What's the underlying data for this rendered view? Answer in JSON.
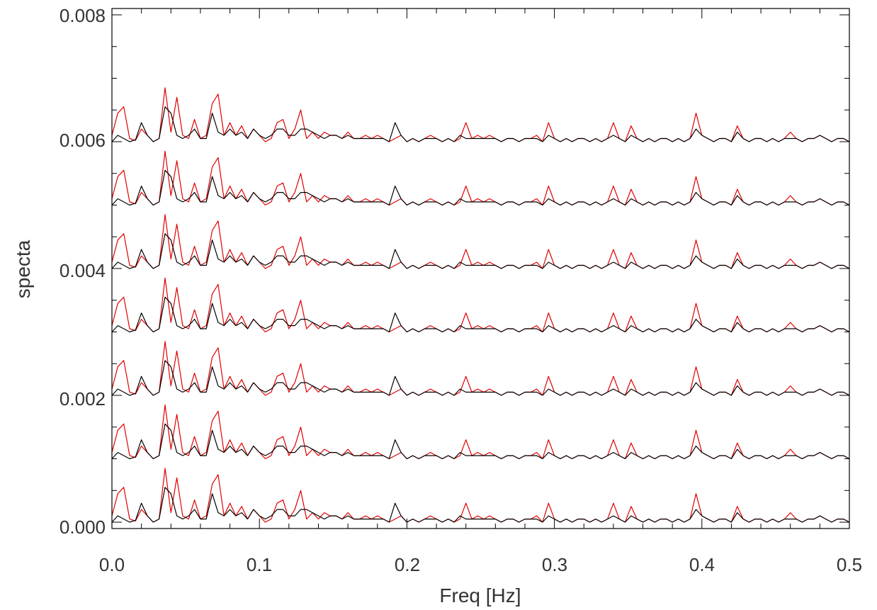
{
  "chart_data": {
    "type": "line",
    "title": "",
    "xlabel": "Freq [Hz]",
    "ylabel": "specta",
    "xlim": [
      0.0,
      0.5
    ],
    "ylim": [
      -0.0001,
      0.0081
    ],
    "x_ticks": [
      "0.0",
      "0.1",
      "0.2",
      "0.3",
      "0.4",
      "0.5"
    ],
    "y_ticks": [
      "0.000",
      "0.002",
      "0.004",
      "0.006",
      "0.008"
    ],
    "grid": false,
    "legend": "none",
    "colors": {
      "red_series": "#e00000",
      "black_series": "#000000"
    },
    "offset_step": 0.001,
    "n_stacked": 7,
    "baselines": [
      0.0,
      0.001,
      0.002,
      0.003,
      0.004,
      0.005,
      0.006
    ],
    "x_step": 0.004,
    "red_profile": [
      0.0001,
      0.00045,
      0.00055,
      5e-05,
      2e-05,
      0.0002,
      0.0001,
      0.0,
      5e-05,
      0.00085,
      0.00015,
      0.0007,
      0.0001,
      5e-05,
      0.00035,
      5e-05,
      0.0001,
      0.0006,
      0.00075,
      0.0001,
      0.0003,
      0.0001,
      0.00025,
      5e-05,
      0.0002,
      0.0001,
      0.0,
      5e-05,
      0.0003,
      0.00035,
      5e-05,
      0.0002,
      0.0005,
      5e-05,
      0.00015,
      5e-05,
      0.00015,
      0.0001,
      0.0001,
      5e-05,
      0.00015,
      5e-05,
      5e-05,
      0.0001,
      5e-05,
      0.0001,
      5e-05,
      0.0,
      5e-05,
      0.0001,
      0.0,
      5e-05,
      0.0,
      5e-05,
      0.0001,
      5e-05,
      0.0,
      5e-05,
      0.0,
      5e-05,
      0.0003,
      5e-05,
      0.0001,
      5e-05,
      0.0001,
      5e-05,
      0.0,
      5e-05,
      5e-05,
      0.0,
      5e-05,
      5e-05,
      0.0001,
      0.0,
      0.0003,
      5e-05,
      0.0,
      5e-05,
      0.0,
      5e-05,
      5e-05,
      0.0,
      5e-05,
      0.0,
      5e-05,
      0.0003,
      5e-05,
      0.0,
      0.00025,
      5e-05,
      0.0,
      5e-05,
      0.0,
      5e-05,
      5e-05,
      0.0,
      5e-05,
      0.0,
      5e-05,
      0.00045,
      0.0001,
      5e-05,
      0.0,
      5e-05,
      5e-05,
      0.0,
      0.00025,
      5e-05,
      0.0,
      5e-05,
      5e-05,
      0.0,
      5e-05,
      0.0,
      5e-05,
      0.00015,
      5e-05,
      0.0,
      5e-05,
      5e-05,
      0.0001,
      5e-05,
      0.0,
      5e-05,
      5e-05,
      0.0
    ],
    "black_profile": [
      0.0,
      0.0001,
      5e-05,
      0.0,
      3e-05,
      0.0003,
      0.0001,
      0.0,
      5e-05,
      0.00055,
      0.00045,
      0.0001,
      5e-05,
      0.0001,
      0.0002,
      5e-05,
      5e-05,
      0.00045,
      0.00015,
      0.0001,
      0.0002,
      0.0001,
      0.00015,
      5e-05,
      0.0002,
      0.0001,
      5e-05,
      0.0001,
      0.0002,
      0.0002,
      0.0001,
      0.0001,
      0.0002,
      0.0002,
      0.00015,
      0.0001,
      5e-05,
      0.0001,
      0.0001,
      5e-05,
      0.0001,
      5e-05,
      5e-05,
      5e-05,
      5e-05,
      5e-05,
      5e-05,
      0.0,
      0.0003,
      0.0001,
      0.0,
      5e-05,
      0.0,
      5e-05,
      5e-05,
      5e-05,
      0.0,
      5e-05,
      0.0,
      0.0001,
      5e-05,
      5e-05,
      5e-05,
      5e-05,
      5e-05,
      5e-05,
      0.0,
      5e-05,
      5e-05,
      0.0,
      5e-05,
      5e-05,
      5e-05,
      0.0,
      0.0001,
      5e-05,
      0.0,
      5e-05,
      0.0,
      5e-05,
      5e-05,
      0.0,
      5e-05,
      0.0,
      5e-05,
      0.0001,
      5e-05,
      0.0,
      0.0001,
      5e-05,
      0.0,
      5e-05,
      0.0,
      5e-05,
      5e-05,
      0.0,
      5e-05,
      0.0,
      5e-05,
      0.0002,
      0.0001,
      5e-05,
      0.0,
      5e-05,
      5e-05,
      0.0,
      0.00015,
      5e-05,
      0.0,
      5e-05,
      5e-05,
      0.0,
      5e-05,
      0.0,
      5e-05,
      5e-05,
      5e-05,
      0.0,
      5e-05,
      5e-05,
      0.0001,
      5e-05,
      0.0,
      5e-05,
      5e-05,
      0.0
    ]
  }
}
